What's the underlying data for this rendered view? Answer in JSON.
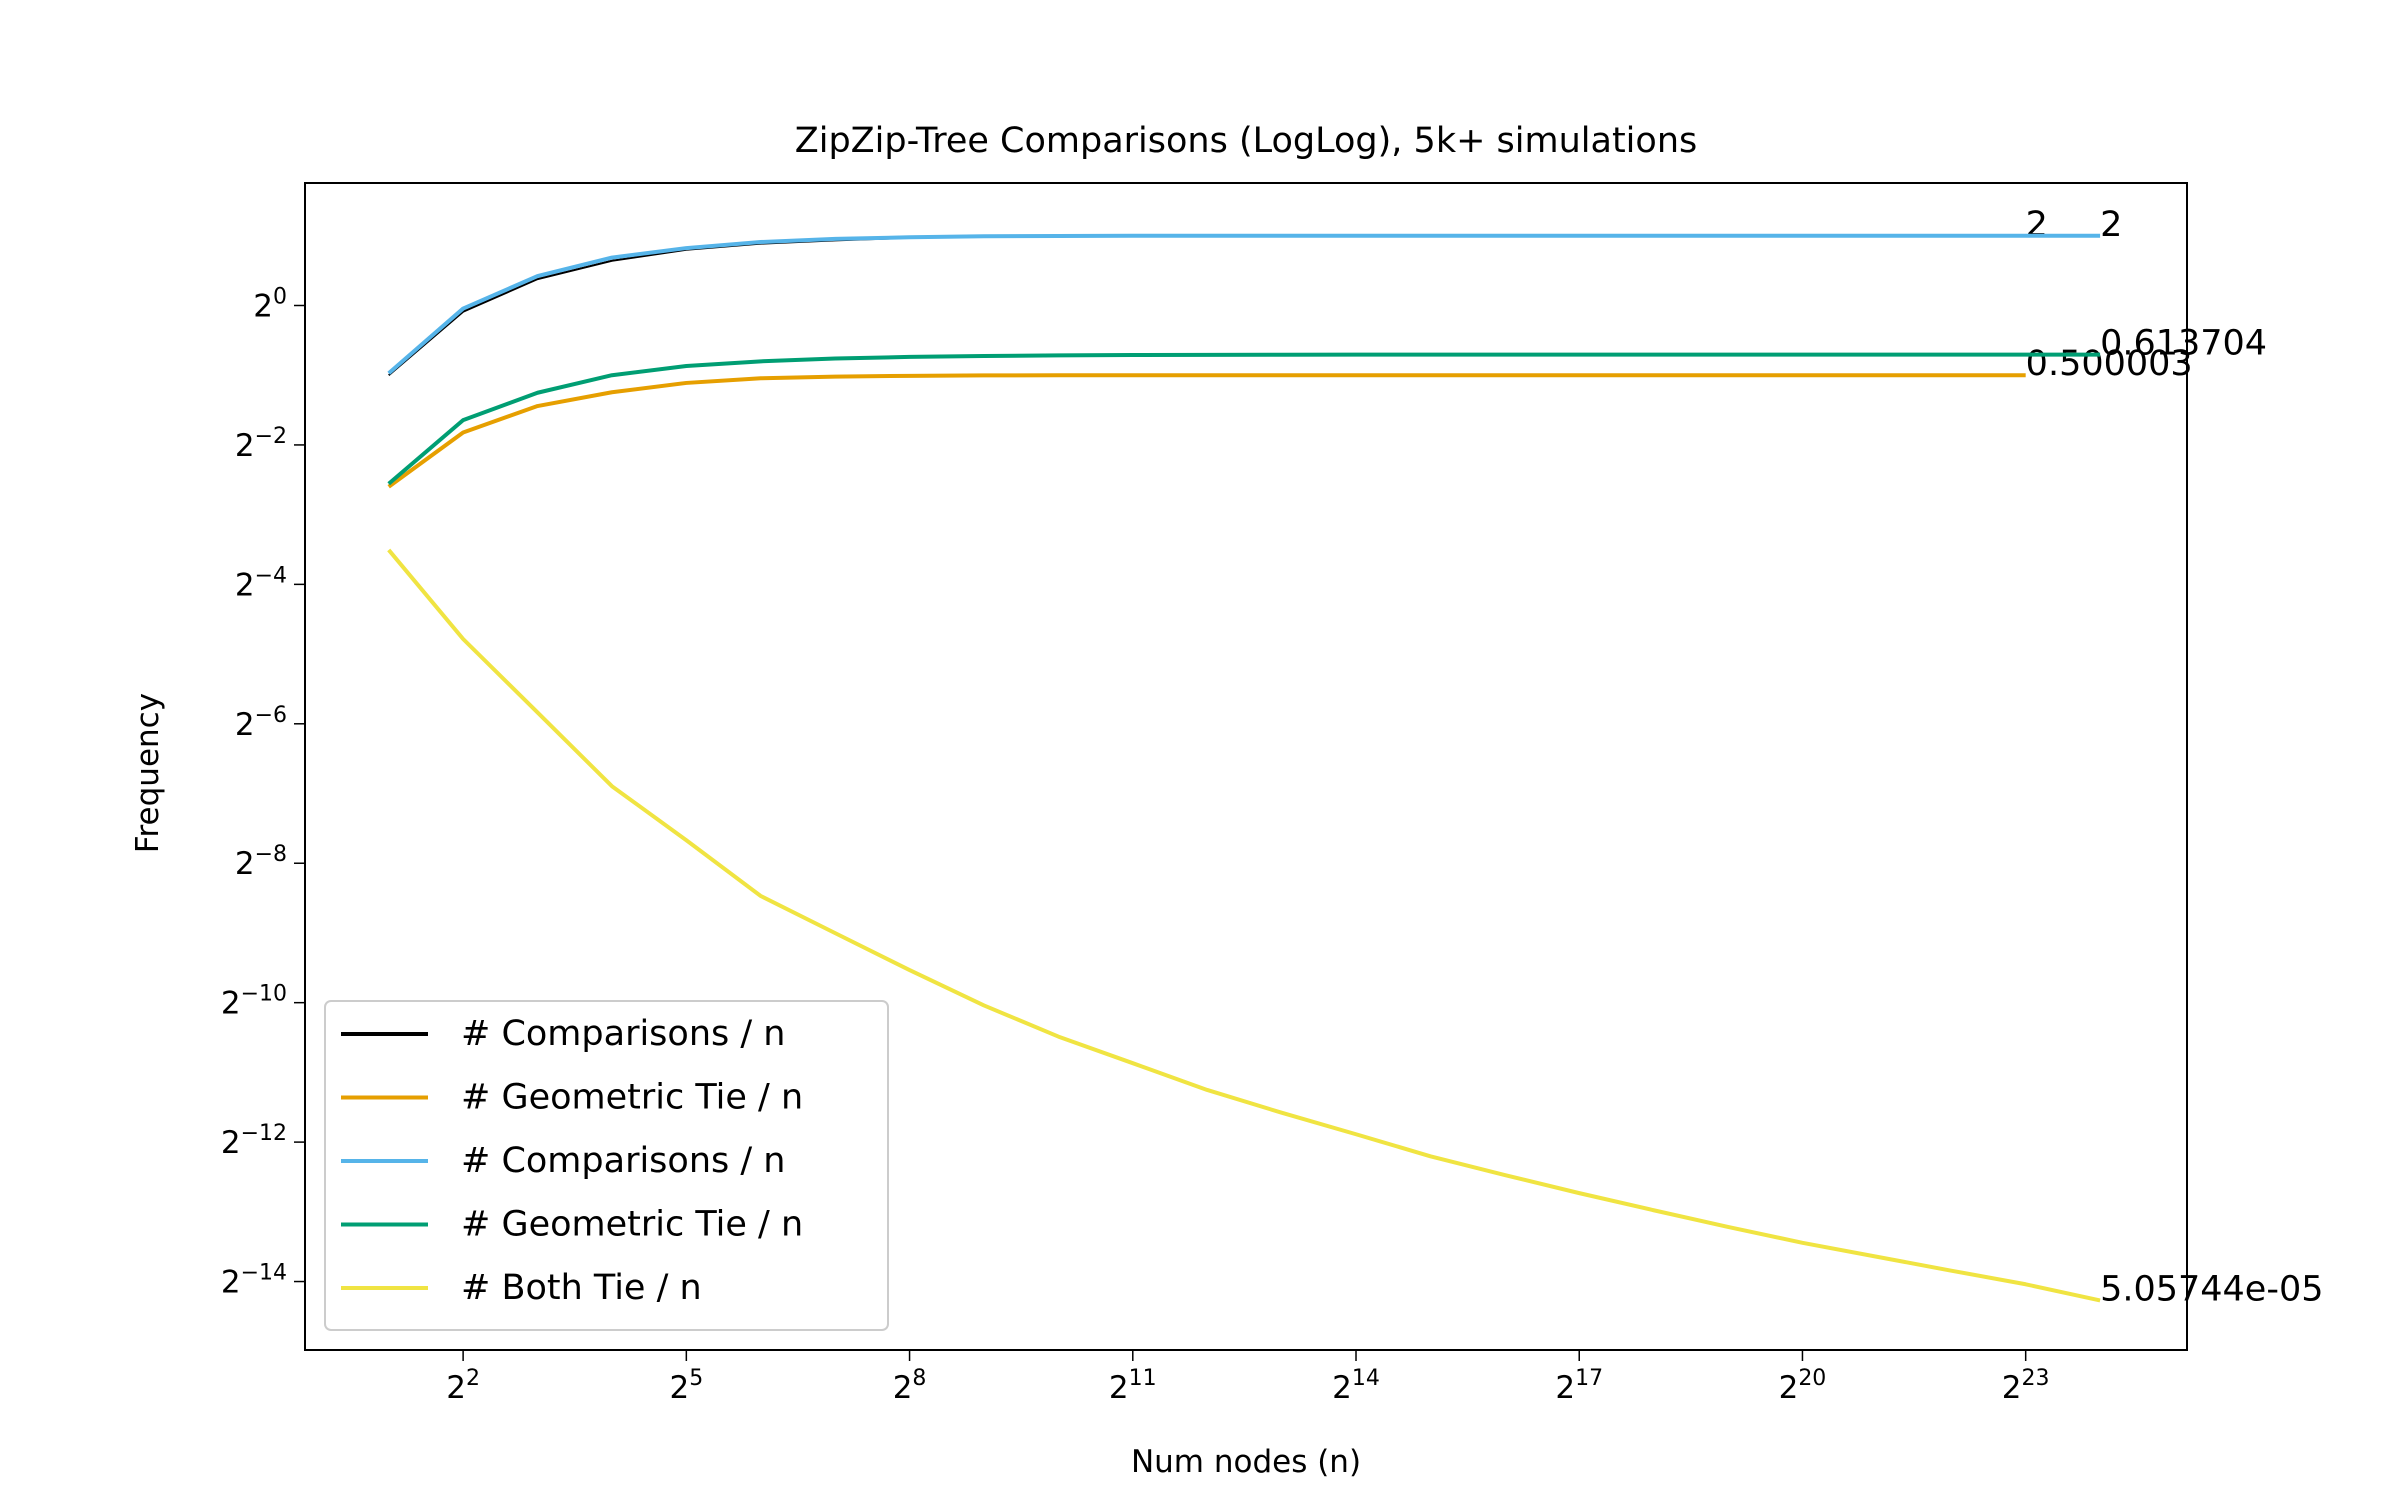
{
  "chart_data": {
    "type": "line",
    "title": "ZipZip-Tree Comparisons (LogLog), 5k+ simulations",
    "x_label": "Num nodes (n)",
    "y_label": "Frequency",
    "xscale": "log2",
    "yscale": "log2",
    "xlim": [
      0.917,
      37700000
    ],
    "ylim": [
      3.09e-05,
      3.38
    ],
    "xticks": [
      {
        "value": 4,
        "label": "2",
        "exponent": "2"
      },
      {
        "value": 32,
        "label": "2",
        "exponent": "5"
      },
      {
        "value": 256,
        "label": "2",
        "exponent": "8"
      },
      {
        "value": 2048,
        "label": "2",
        "exponent": "11"
      },
      {
        "value": 16384,
        "label": "2",
        "exponent": "14"
      },
      {
        "value": 131072,
        "label": "2",
        "exponent": "17"
      },
      {
        "value": 1048576,
        "label": "2",
        "exponent": "20"
      },
      {
        "value": 8388608,
        "label": "2",
        "exponent": "23"
      }
    ],
    "yticks": [
      {
        "value": 1,
        "label": "2",
        "exponent": "0"
      },
      {
        "value": 0.25,
        "label": "2",
        "exponent": "−2"
      },
      {
        "value": 0.0625,
        "label": "2",
        "exponent": "−4"
      },
      {
        "value": 0.015625,
        "label": "2",
        "exponent": "−6"
      },
      {
        "value": 0.00390625,
        "label": "2",
        "exponent": "−8"
      },
      {
        "value": 0.0009765625,
        "label": "2",
        "exponent": "−10"
      },
      {
        "value": 0.000244140625,
        "label": "2",
        "exponent": "−12"
      },
      {
        "value": 6.103515625e-05,
        "label": "2",
        "exponent": "−14"
      }
    ],
    "legend": "lower left",
    "x": [
      2,
      4,
      8,
      16,
      32,
      64,
      128,
      256,
      512,
      1024,
      2048,
      4096,
      8192,
      16384,
      32768,
      65536,
      131072,
      262144,
      524288,
      1048576,
      2097152,
      4194304,
      8388608,
      16777216
    ],
    "series": [
      {
        "name": "# Comparisons / n",
        "color": "#000000",
        "values": [
          0.5,
          0.94,
          1.3,
          1.56,
          1.74,
          1.85,
          1.91,
          1.96,
          1.98,
          1.99,
          1.995,
          2,
          2,
          2,
          2,
          2,
          2,
          2,
          2,
          2,
          2,
          2,
          2,
          null
        ],
        "value_labels": [
          null,
          null,
          null,
          null,
          null,
          null,
          null,
          null,
          null,
          null,
          null,
          null,
          null,
          null,
          null,
          null,
          null,
          null,
          null,
          null,
          null,
          null,
          "2",
          null
        ]
      },
      {
        "name": "# Geometric Tie / n",
        "color": "#E69F00",
        "values": [
          0.165,
          0.283,
          0.368,
          0.422,
          0.463,
          0.485,
          0.493,
          0.497,
          0.499,
          0.4995,
          0.5,
          0.5,
          0.5,
          0.5,
          0.5,
          0.5,
          0.5,
          0.5,
          0.5,
          0.5,
          0.5,
          0.5,
          0.500003,
          null
        ],
        "value_labels": [
          null,
          null,
          null,
          null,
          null,
          null,
          null,
          null,
          null,
          null,
          null,
          null,
          null,
          null,
          null,
          null,
          null,
          null,
          null,
          null,
          null,
          null,
          "0.500003",
          null
        ]
      },
      {
        "name": "# Comparisons / n",
        "color": "#56B4E9",
        "values": [
          0.51,
          0.97,
          1.34,
          1.61,
          1.77,
          1.88,
          1.94,
          1.97,
          1.99,
          1.995,
          2,
          2,
          2,
          2,
          2,
          2,
          2,
          2,
          2,
          2,
          2,
          2,
          2,
          2
        ],
        "value_labels": [
          null,
          null,
          null,
          null,
          null,
          null,
          null,
          null,
          null,
          null,
          null,
          null,
          null,
          null,
          null,
          null,
          null,
          null,
          null,
          null,
          null,
          null,
          null,
          "2"
        ]
      },
      {
        "name": "# Geometric Tie / n",
        "color": "#009E73",
        "values": [
          0.17,
          0.32,
          0.42,
          0.5,
          0.548,
          0.574,
          0.59,
          0.6,
          0.605,
          0.609,
          0.611,
          0.612,
          0.613,
          0.6135,
          0.6137,
          0.6137,
          0.6137,
          0.6137,
          0.6137,
          0.6137,
          0.6137,
          0.6137,
          0.6137,
          0.613704
        ],
        "value_labels": [
          null,
          null,
          null,
          null,
          null,
          null,
          null,
          null,
          null,
          null,
          null,
          null,
          null,
          null,
          null,
          null,
          null,
          null,
          null,
          null,
          null,
          null,
          null,
          "0.613704"
        ]
      },
      {
        "name": "# Both Tie / n",
        "color": "#F0E442",
        "values": [
          0.088,
          0.0363,
          0.0175,
          0.0084,
          0.00491,
          0.00282,
          0.00195,
          0.00135,
          0.00095,
          0.000697,
          0.000535,
          0.00041,
          0.000327,
          0.000264,
          0.000212,
          0.000176,
          0.000147,
          0.000124,
          0.000105,
          8.97e-05,
          7.81e-05,
          6.8e-05,
          5.94e-05,
          5.05744e-05
        ],
        "value_labels": [
          null,
          null,
          null,
          null,
          null,
          null,
          null,
          null,
          null,
          null,
          null,
          null,
          null,
          null,
          null,
          null,
          null,
          null,
          null,
          null,
          null,
          null,
          null,
          "5.05744e-05"
        ]
      }
    ]
  }
}
